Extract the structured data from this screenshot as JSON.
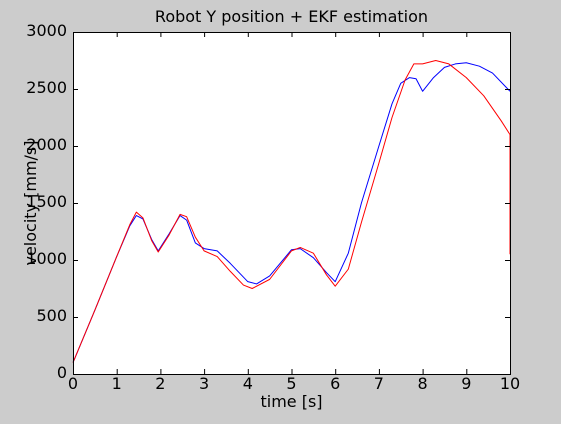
{
  "chart_data": {
    "type": "line",
    "title": "Robot Y position + EKF estimation",
    "xlabel": "time [s]",
    "ylabel": "velocity [mm/s]",
    "xlim": [
      0,
      10
    ],
    "ylim": [
      0,
      3000
    ],
    "xticks": [
      0,
      1,
      2,
      3,
      4,
      5,
      6,
      7,
      8,
      9,
      10
    ],
    "yticks": [
      0,
      500,
      1000,
      1500,
      2000,
      2500,
      3000
    ],
    "grid": false,
    "legend": "none",
    "colors": {
      "background": "#cccccc",
      "axes": "#ffffff",
      "blue": "#0000ff",
      "red": "#ff0000"
    },
    "series": [
      {
        "color": "#0000ff",
        "x": [
          0,
          0.5,
          1.0,
          1.3,
          1.45,
          1.6,
          1.8,
          1.95,
          2.2,
          2.45,
          2.6,
          2.8,
          3.0,
          3.3,
          3.6,
          4.0,
          4.2,
          4.5,
          5.0,
          5.2,
          5.5,
          5.8,
          6.0,
          6.3,
          6.6,
          7.0,
          7.3,
          7.5,
          7.7,
          7.85,
          8.0,
          8.25,
          8.5,
          8.75,
          9.0,
          9.3,
          9.6,
          10.0
        ],
        "y": [
          100,
          560,
          1030,
          1300,
          1390,
          1360,
          1180,
          1080,
          1230,
          1390,
          1350,
          1150,
          1100,
          1080,
          970,
          810,
          790,
          860,
          1090,
          1100,
          1020,
          890,
          810,
          1060,
          1500,
          2000,
          2370,
          2550,
          2600,
          2590,
          2480,
          2600,
          2690,
          2720,
          2730,
          2700,
          2640,
          2480
        ]
      },
      {
        "color": "#ff0000",
        "x": [
          0,
          0.5,
          1.0,
          1.3,
          1.45,
          1.6,
          1.8,
          1.95,
          2.2,
          2.45,
          2.6,
          2.8,
          3.0,
          3.3,
          3.6,
          3.9,
          4.1,
          4.5,
          5.0,
          5.2,
          5.5,
          5.8,
          6.0,
          6.3,
          6.6,
          7.0,
          7.3,
          7.6,
          7.8,
          8.0,
          8.3,
          8.6,
          9.0,
          9.4,
          9.8,
          10.0,
          10.0
        ],
        "y": [
          100,
          560,
          1030,
          1310,
          1420,
          1370,
          1170,
          1070,
          1220,
          1400,
          1380,
          1200,
          1080,
          1030,
          900,
          780,
          750,
          830,
          1080,
          1110,
          1060,
          870,
          770,
          920,
          1330,
          1850,
          2250,
          2580,
          2720,
          2720,
          2750,
          2720,
          2600,
          2440,
          2220,
          2100,
          1050
        ]
      }
    ]
  }
}
